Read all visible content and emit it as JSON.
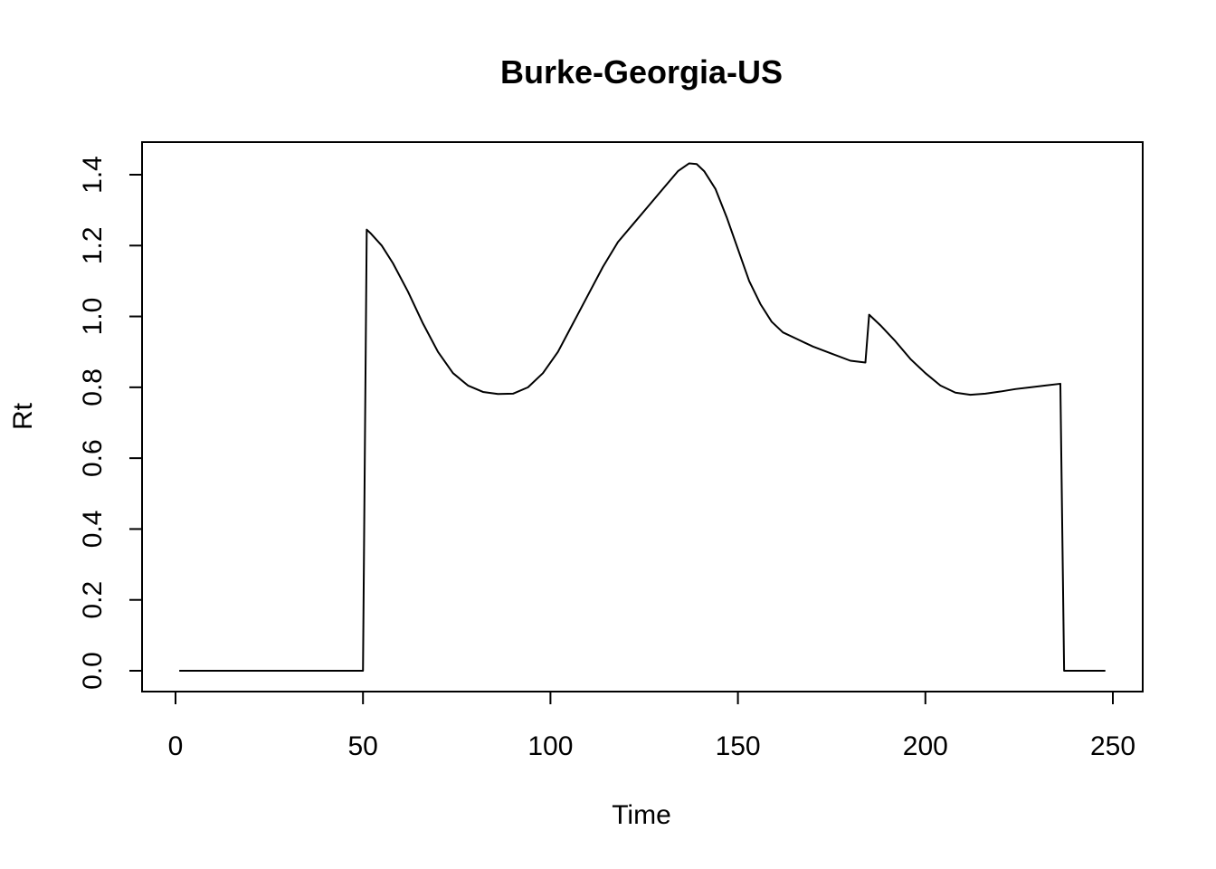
{
  "chart_data": {
    "type": "line",
    "title": "Burke-Georgia-US",
    "xlabel": "Time",
    "ylabel": "Rt",
    "xlim": [
      1,
      248
    ],
    "ylim": [
      0,
      1.45
    ],
    "x_ticks": [
      "0",
      "50",
      "100",
      "150",
      "200",
      "250"
    ],
    "y_ticks": [
      "0.0",
      "0.2",
      "0.4",
      "0.6",
      "0.8",
      "1.0",
      "1.2",
      "1.4"
    ],
    "grid": false,
    "line_color": "#000000",
    "series": [
      {
        "x": [
          1,
          50,
          51,
          52,
          55,
          58,
          62,
          66,
          70,
          74,
          78,
          82,
          86,
          90,
          94,
          98,
          102,
          106,
          110,
          114,
          118,
          122,
          126,
          130,
          134,
          137,
          139,
          141,
          144,
          147,
          150,
          153,
          156,
          159,
          162,
          166,
          170,
          175,
          180,
          184,
          185,
          188,
          192,
          196,
          200,
          204,
          208,
          212,
          216,
          220,
          224,
          228,
          232,
          236,
          237,
          248
        ],
        "y": [
          0,
          0,
          1.245,
          1.235,
          1.2,
          1.15,
          1.07,
          0.98,
          0.9,
          0.84,
          0.805,
          0.787,
          0.781,
          0.782,
          0.8,
          0.84,
          0.9,
          0.98,
          1.06,
          1.14,
          1.21,
          1.26,
          1.31,
          1.36,
          1.41,
          1.432,
          1.43,
          1.41,
          1.36,
          1.28,
          1.19,
          1.1,
          1.035,
          0.985,
          0.955,
          0.935,
          0.915,
          0.895,
          0.875,
          0.87,
          1.005,
          0.975,
          0.93,
          0.88,
          0.84,
          0.805,
          0.785,
          0.779,
          0.782,
          0.788,
          0.795,
          0.8,
          0.805,
          0.81,
          0,
          0
        ]
      }
    ]
  }
}
